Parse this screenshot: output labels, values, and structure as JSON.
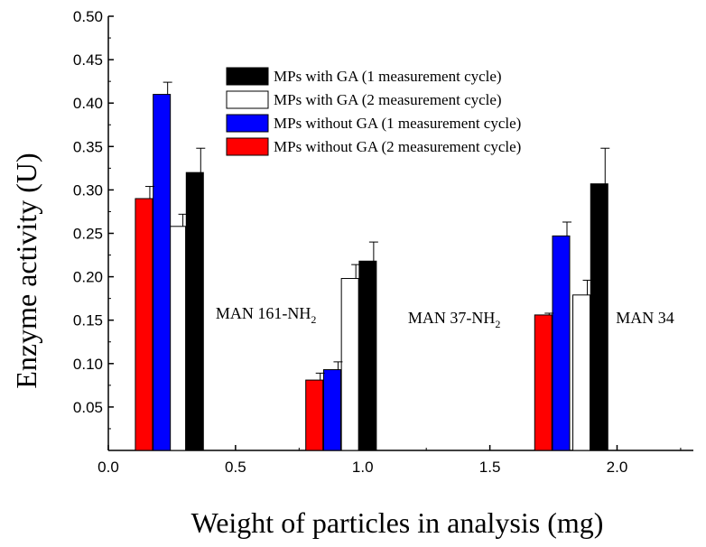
{
  "chart_data": {
    "type": "bar",
    "ylabel": "Enzyme activity (U)",
    "xlabel": "Weight of particles in analysis (mg)",
    "xlim": [
      0.0,
      2.3
    ],
    "ylim": [
      0.0,
      0.5
    ],
    "xticks": [
      "0.0",
      "0.5",
      "1.0",
      "1.5",
      "2.0"
    ],
    "yticks": [
      "0.05",
      "0.10",
      "0.15",
      "0.20",
      "0.25",
      "0.30",
      "0.35",
      "0.40",
      "0.45",
      "0.50"
    ],
    "series": [
      {
        "name": "MPs with GA (1 measurement cycle)",
        "color": "#000000",
        "points": [
          {
            "x": 0.34,
            "y": 0.32,
            "err": 0.028
          },
          {
            "x": 1.02,
            "y": 0.218,
            "err": 0.022
          },
          {
            "x": 1.93,
            "y": 0.307,
            "err": 0.041
          }
        ]
      },
      {
        "name": "MPs with GA (2 measurement cycle)",
        "color": "#ffffff",
        "points": [
          {
            "x": 0.27,
            "y": 0.258,
            "err": 0.014
          },
          {
            "x": 0.95,
            "y": 0.198,
            "err": 0.016
          },
          {
            "x": 1.86,
            "y": 0.179,
            "err": 0.017
          }
        ]
      },
      {
        "name": "MPs without GA (1 measurement cycle)",
        "color": "#0000ff",
        "points": [
          {
            "x": 0.21,
            "y": 0.41,
            "err": 0.014
          },
          {
            "x": 0.88,
            "y": 0.093,
            "err": 0.009
          },
          {
            "x": 1.78,
            "y": 0.247,
            "err": 0.016
          }
        ]
      },
      {
        "name": "MPs without GA (2 measurement cycle)",
        "color": "#ff0000",
        "points": [
          {
            "x": 0.14,
            "y": 0.29,
            "err": 0.014
          },
          {
            "x": 0.81,
            "y": 0.081,
            "err": 0.008
          },
          {
            "x": 1.71,
            "y": 0.156,
            "err": 0.002
          }
        ]
      }
    ],
    "annotations": [
      {
        "base": "MAN 161-NH",
        "sub": "2",
        "near_x": 0.62,
        "near_y": 0.16
      },
      {
        "base": "MAN 37-NH",
        "sub": "2",
        "near_x": 1.36,
        "near_y": 0.155
      },
      {
        "base": "MAN 34",
        "sub": "",
        "near_x": 2.11,
        "near_y": 0.155
      }
    ],
    "legend_position": "top-right"
  }
}
